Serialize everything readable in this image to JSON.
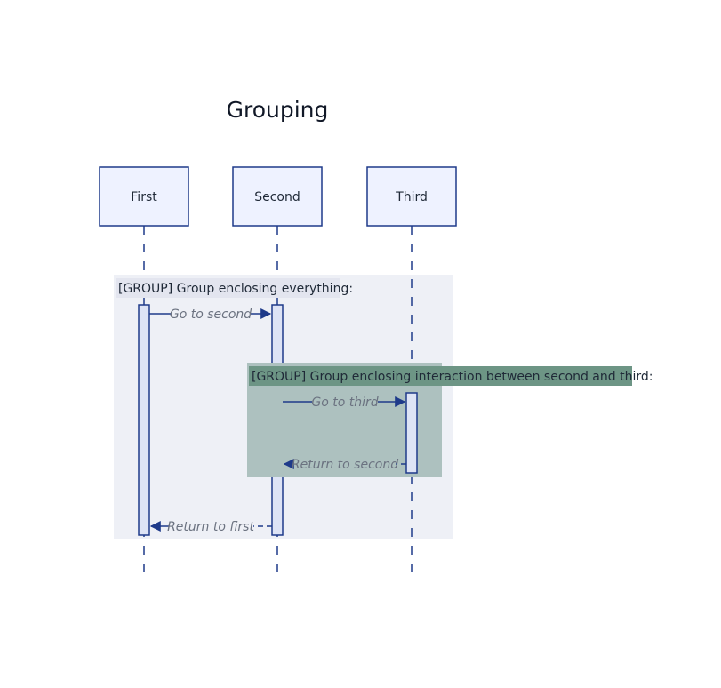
{
  "title": "Grouping",
  "actors": [
    {
      "id": "first",
      "label": "First"
    },
    {
      "id": "second",
      "label": "Second"
    },
    {
      "id": "third",
      "label": "Third"
    }
  ],
  "groups": [
    {
      "id": "outer",
      "label": "[GROUP] Group enclosing everything:"
    },
    {
      "id": "inner",
      "label": "[GROUP] Group enclosing interaction between second and third:"
    }
  ],
  "messages": [
    {
      "id": "go-to-second",
      "label": "Go to second",
      "from": "First",
      "to": "Second",
      "style": "solid"
    },
    {
      "id": "go-to-third",
      "label": "Go to third",
      "from": "Second",
      "to": "Third",
      "style": "solid"
    },
    {
      "id": "return-to-second",
      "label": "Return to second",
      "from": "Third",
      "to": "Second",
      "style": "dashed"
    },
    {
      "id": "return-to-first",
      "label": "Return to first",
      "from": "Second",
      "to": "First",
      "style": "dashed"
    }
  ],
  "colors": {
    "line": "#1e3a8a",
    "actor_fill": "#eef2ff",
    "activation_fill": "#dde3f5",
    "outer_group_fill": "#eef0f6",
    "inner_group_fill": "#adc1bf",
    "inner_label_fill": "#6d9585",
    "outer_label_fill": "#e3e5ef"
  }
}
